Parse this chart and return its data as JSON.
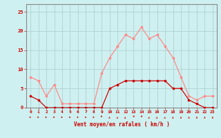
{
  "hours": [
    0,
    1,
    2,
    3,
    4,
    5,
    6,
    7,
    8,
    9,
    10,
    11,
    12,
    13,
    14,
    15,
    16,
    17,
    18,
    19,
    20,
    21,
    22,
    23
  ],
  "wind_avg": [
    3,
    2,
    0,
    0,
    0,
    0,
    0,
    0,
    0,
    0,
    5,
    6,
    7,
    7,
    7,
    7,
    7,
    7,
    5,
    5,
    2,
    1,
    0,
    0
  ],
  "wind_gust": [
    8,
    7,
    3,
    6,
    1,
    1,
    1,
    1,
    1,
    9,
    13,
    16,
    19,
    18,
    21,
    18,
    19,
    16,
    13,
    8,
    3,
    2,
    3,
    3
  ],
  "bg_color": "#cff0f0",
  "grid_color": "#aacccc",
  "line_avg_color": "#cc0000",
  "line_gust_color": "#ff8888",
  "marker_avg_color": "#cc0000",
  "marker_gust_color": "#ff8888",
  "xlabel": "Vent moyen/en rafales ( km/h )",
  "ylabel_ticks": [
    0,
    5,
    10,
    15,
    20,
    25
  ],
  "ylim": [
    0,
    27
  ],
  "xlim": [
    -0.5,
    23.5
  ],
  "xlabel_color": "#cc0000",
  "tick_color": "#cc0000",
  "spine_color": "#888888",
  "arrow_dirs_x": [
    -1,
    -1,
    -1,
    -1,
    -1,
    -1,
    -1,
    -1,
    -1,
    -0.5,
    0.3,
    0.5,
    0.7,
    0.8,
    0.8,
    0.6,
    0.7,
    0.5,
    0.3,
    0.1,
    0.0,
    0.0,
    0.0,
    0.0
  ],
  "arrow_dirs_y": [
    -0.5,
    -0.5,
    -0.5,
    -0.5,
    -0.5,
    -0.5,
    -0.5,
    -0.5,
    -0.5,
    0.5,
    1.0,
    1.0,
    1.0,
    1.0,
    1.0,
    1.0,
    1.0,
    1.0,
    1.0,
    1.0,
    1.0,
    1.0,
    1.0,
    1.0
  ]
}
